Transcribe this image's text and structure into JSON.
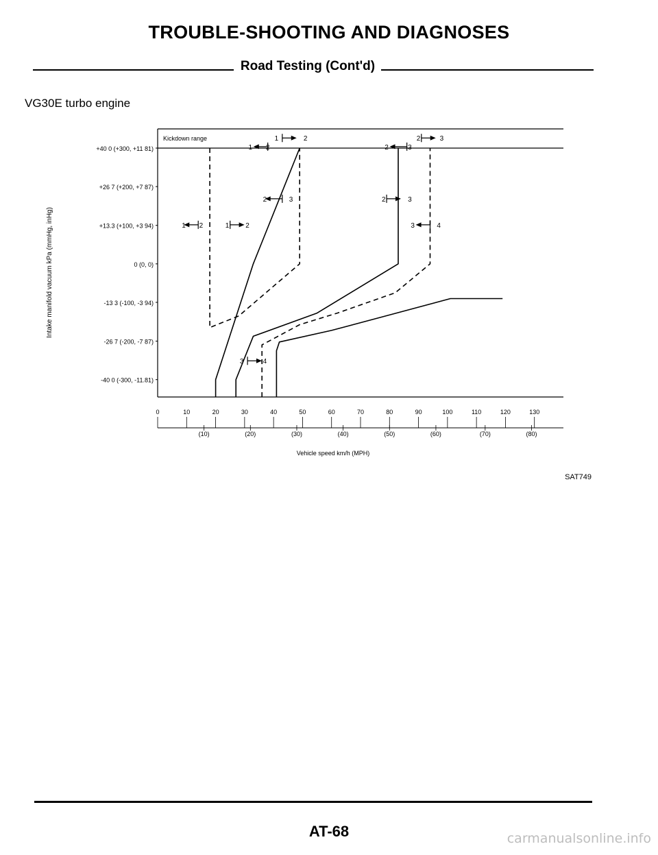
{
  "header": {
    "title": "TROUBLE-SHOOTING AND DIAGNOSES",
    "subtitle": "Road Testing (Cont'd)"
  },
  "engine_label": "VG30E turbo engine",
  "figure_code": "SAT749",
  "footer": {
    "page_number": "AT-68"
  },
  "watermark": "carmanualsonline.info",
  "colors": {
    "ink": "#000000",
    "watermark": "#bdbdbd",
    "background": "#ffffff"
  },
  "chart_data": {
    "type": "line",
    "xlabel": "Vehicle speed km/h (MPH)",
    "ylabel": "Intake manifold vacuum kPa (mmHg, inHg)",
    "xlim": [
      0,
      140
    ],
    "ylim": [
      -46,
      40
    ],
    "x_ticks": [
      "0",
      "10",
      "20",
      "30",
      "40",
      "50",
      "60",
      "70",
      "80",
      "90",
      "100",
      "110",
      "120",
      "130"
    ],
    "x_ticks_mph": [
      {
        "x": 16,
        "label": "(10)"
      },
      {
        "x": 32,
        "label": "(20)"
      },
      {
        "x": 48,
        "label": "(30)"
      },
      {
        "x": 64,
        "label": "(40)"
      },
      {
        "x": 80,
        "label": "(50)"
      },
      {
        "x": 96,
        "label": "(60)"
      },
      {
        "x": 113,
        "label": "(70)"
      },
      {
        "x": 129,
        "label": "(80)"
      }
    ],
    "y_ticks": [
      {
        "y": 40,
        "label": "+40 0 (+300, +11 81)"
      },
      {
        "y": 26.7,
        "label": "+26 7 (+200, +7 87)"
      },
      {
        "y": 13.3,
        "label": "+13.3 (+100, +3 94)"
      },
      {
        "y": 0,
        "label": "0 (0, 0)"
      },
      {
        "y": -13.3,
        "label": "-13 3 (-100, -3 94)"
      },
      {
        "y": -26.7,
        "label": "-26 7 (-200, -7 87)"
      },
      {
        "y": -40,
        "label": "-40 0 (-300, -11.81)"
      }
    ],
    "kickdown_label": "Kickdown range",
    "series": [
      {
        "style": "dashed",
        "points": [
          [
            18,
            40
          ],
          [
            18,
            -22
          ],
          [
            28,
            -18
          ],
          [
            49,
            0
          ],
          [
            49,
            40
          ]
        ]
      },
      {
        "style": "solid",
        "points": [
          [
            20,
            -46
          ],
          [
            20,
            -40
          ],
          [
            33,
            0
          ],
          [
            49,
            40
          ]
        ]
      },
      {
        "style": "solid",
        "points": [
          [
            27,
            -46
          ],
          [
            27,
            -40
          ],
          [
            33,
            -25
          ],
          [
            55,
            -17
          ],
          [
            83,
            0
          ],
          [
            83,
            40
          ]
        ]
      },
      {
        "style": "dashed",
        "points": [
          [
            36,
            -46
          ],
          [
            36,
            -28
          ],
          [
            49,
            -21
          ],
          [
            62,
            -17
          ],
          [
            82,
            -10
          ],
          [
            94,
            0
          ],
          [
            94,
            40
          ]
        ]
      },
      {
        "style": "solid",
        "points": [
          [
            41,
            -46
          ],
          [
            41,
            -30
          ],
          [
            42,
            -27
          ],
          [
            60,
            -23
          ],
          [
            75,
            -19
          ],
          [
            101,
            -12
          ],
          [
            119,
            -12
          ]
        ]
      }
    ],
    "annotations": [
      {
        "text": "1",
        "x": 41,
        "y": 43.5
      },
      {
        "text": "2",
        "x": 51,
        "y": 43.5
      },
      {
        "text": "1",
        "x": 32,
        "y": 40.5
      },
      {
        "text": "2",
        "x": 38,
        "y": 40.5
      },
      {
        "text": "2",
        "x": 90,
        "y": 43.5
      },
      {
        "text": "3",
        "x": 98,
        "y": 43.5
      },
      {
        "text": "2",
        "x": 79,
        "y": 40.5
      },
      {
        "text": "3",
        "x": 87,
        "y": 40.5
      },
      {
        "text": "2",
        "x": 37,
        "y": 22.5
      },
      {
        "text": "3",
        "x": 46,
        "y": 22.5
      },
      {
        "text": "2",
        "x": 78,
        "y": 22.5
      },
      {
        "text": "3",
        "x": 87,
        "y": 22.5
      },
      {
        "text": "1",
        "x": 9,
        "y": 13.5
      },
      {
        "text": "2",
        "x": 15,
        "y": 13.5
      },
      {
        "text": "1",
        "x": 24,
        "y": 13.5
      },
      {
        "text": "2",
        "x": 31,
        "y": 13.5
      },
      {
        "text": "3",
        "x": 88,
        "y": 13.5
      },
      {
        "text": "4",
        "x": 97,
        "y": 13.5
      },
      {
        "text": "3",
        "x": 29,
        "y": -33.5
      },
      {
        "text": "4",
        "x": 37,
        "y": -33.5
      }
    ],
    "arrows": [
      {
        "x1": 43,
        "x2": 47,
        "y": 43.5,
        "head": "end"
      },
      {
        "x1": 34,
        "x2": 38,
        "y": 40.5,
        "head": "start"
      },
      {
        "x1": 91,
        "x2": 95,
        "y": 43.5,
        "head": "end"
      },
      {
        "x1": 81,
        "x2": 86,
        "y": 40.5,
        "head": "start"
      },
      {
        "x1": 38,
        "x2": 43,
        "y": 22.5,
        "head": "start"
      },
      {
        "x1": 79,
        "x2": 83,
        "y": 22.5,
        "head": "end"
      },
      {
        "x1": 10,
        "x2": 14,
        "y": 13.5,
        "head": "start"
      },
      {
        "x1": 25,
        "x2": 29,
        "y": 13.5,
        "head": "end"
      },
      {
        "x1": 90,
        "x2": 94,
        "y": 13.5,
        "head": "start"
      },
      {
        "x1": 31,
        "x2": 35,
        "y": -33.5,
        "head": "end"
      }
    ],
    "grid": false,
    "legend": "none"
  }
}
